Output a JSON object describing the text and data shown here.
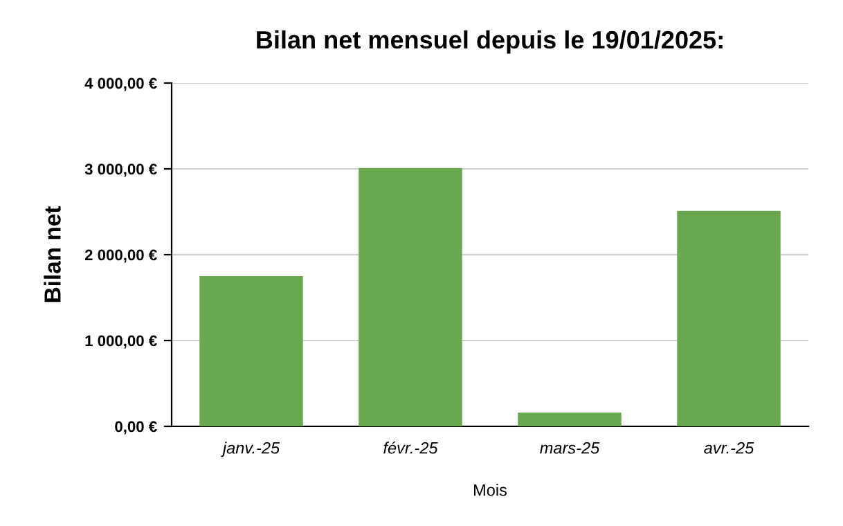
{
  "chart_data": {
    "type": "bar",
    "title": "Bilan net mensuel depuis le 19/01/2025:",
    "xlabel": "Mois",
    "ylabel": "Bilan net",
    "categories": [
      "janv.-25",
      "févr.-25",
      "mars-25",
      "avr.-25"
    ],
    "values": [
      1750,
      3010,
      160,
      2510
    ],
    "color": "#6aa84f",
    "ylim": [
      0,
      4000
    ],
    "yticks": [
      {
        "value": 0,
        "label": "0,00 €"
      },
      {
        "value": 1000,
        "label": "1 000,00 €"
      },
      {
        "value": 2000,
        "label": "2 000,00 €"
      },
      {
        "value": 3000,
        "label": "3 000,00 €"
      },
      {
        "value": 4000,
        "label": "4 000,00 €"
      }
    ],
    "grid": "y",
    "legend": false
  }
}
